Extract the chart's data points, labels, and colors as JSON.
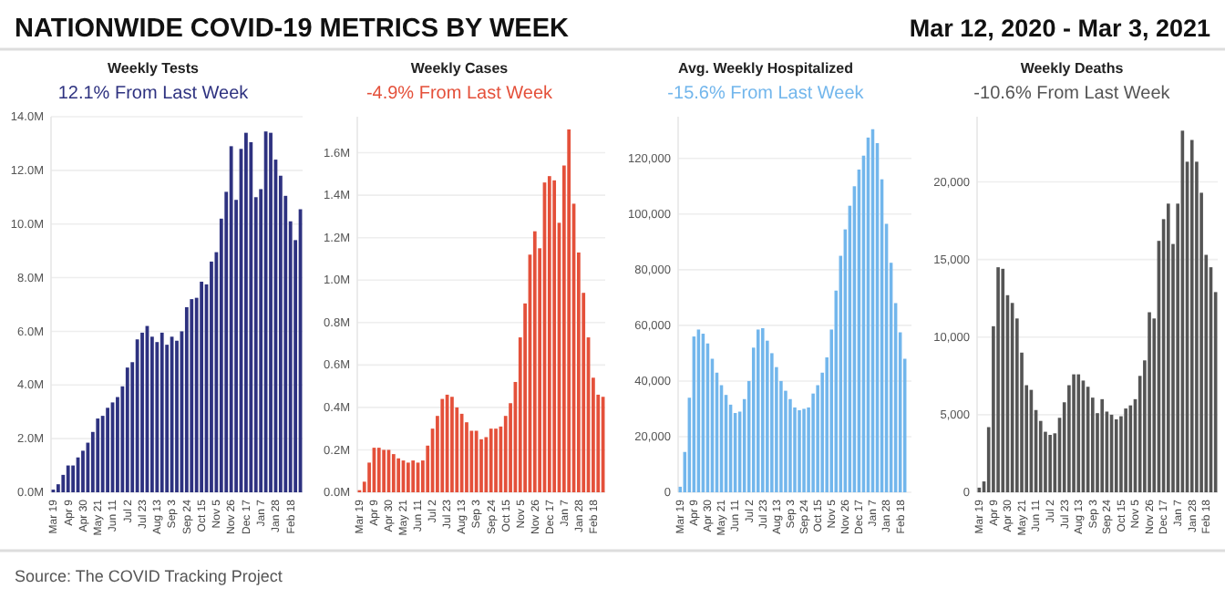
{
  "chart_data": [
    {
      "type": "bar",
      "title": "Weekly Tests",
      "subtitle": "12.1% From Last Week",
      "annotations": [
        "NATIONWIDE COVID-19 METRICS BY WEEK",
        "Mar 12, 2020 - Mar 3, 2021",
        "Source: The COVID Tracking Project"
      ],
      "categories": [
        "Mar 19",
        null,
        null,
        "Apr 9",
        null,
        null,
        "Apr 30",
        null,
        null,
        "May 21",
        null,
        null,
        "Jun 11",
        null,
        null,
        "Jul 2",
        null,
        null,
        "Jul 23",
        null,
        null,
        "Aug 13",
        null,
        null,
        "Sep 3",
        null,
        null,
        "Sep 24",
        null,
        null,
        "Oct 15",
        null,
        null,
        "Nov 5",
        null,
        null,
        "Nov 26",
        null,
        null,
        "Dec 17",
        null,
        null,
        "Jan 7",
        null,
        null,
        "Jan 28",
        null,
        null,
        "Feb 18",
        null,
        null
      ],
      "series": [
        {
          "color": "#2e3280",
          "values": [
            0.1,
            0.3,
            0.65,
            1.0,
            1.0,
            1.3,
            1.55,
            1.85,
            2.25,
            2.75,
            2.85,
            3.15,
            3.35,
            3.55,
            3.95,
            4.65,
            4.85,
            5.7,
            5.95,
            6.2,
            5.8,
            5.6,
            5.95,
            5.5,
            5.8,
            5.65,
            6.0,
            6.9,
            7.2,
            7.25,
            7.85,
            7.75,
            8.6,
            8.95,
            10.2,
            11.2,
            12.9,
            10.9,
            12.8,
            13.4,
            13.05,
            11.0,
            11.3,
            13.45,
            13.4,
            12.4,
            11.8,
            11.05,
            10.1,
            9.4,
            10.55
          ]
        }
      ],
      "ylim": [
        0,
        14
      ],
      "yticks": [
        {
          "value": 0,
          "label": "0.0M"
        },
        {
          "value": 2,
          "label": "2.0M"
        },
        {
          "value": 4,
          "label": "4.0M"
        },
        {
          "value": 6,
          "label": "6.0M"
        },
        {
          "value": 8,
          "label": "8.0M"
        },
        {
          "value": 10,
          "label": "10.0M"
        },
        {
          "value": 12,
          "label": "12.0M"
        },
        {
          "value": 14,
          "label": "14.0M"
        }
      ],
      "grid": "y"
    },
    {
      "type": "bar",
      "title": "Weekly Cases",
      "subtitle": "-4.9% From Last Week",
      "categories": [
        "Mar 19",
        null,
        null,
        "Apr 9",
        null,
        null,
        "Apr 30",
        null,
        null,
        "May 21",
        null,
        null,
        "Jun 11",
        null,
        null,
        "Jul 2",
        null,
        null,
        "Jul 23",
        null,
        null,
        "Aug 13",
        null,
        null,
        "Sep 3",
        null,
        null,
        "Sep 24",
        null,
        null,
        "Oct 15",
        null,
        null,
        "Nov 5",
        null,
        null,
        "Nov 26",
        null,
        null,
        "Dec 17",
        null,
        null,
        "Jan 7",
        null,
        null,
        "Jan 28",
        null,
        null,
        "Feb 18",
        null,
        null
      ],
      "series": [
        {
          "color": "#e4503a",
          "values": [
            0.01,
            0.05,
            0.14,
            0.21,
            0.21,
            0.2,
            0.2,
            0.18,
            0.16,
            0.15,
            0.14,
            0.15,
            0.14,
            0.15,
            0.22,
            0.3,
            0.36,
            0.44,
            0.46,
            0.45,
            0.4,
            0.37,
            0.33,
            0.29,
            0.29,
            0.25,
            0.26,
            0.3,
            0.3,
            0.31,
            0.36,
            0.42,
            0.52,
            0.73,
            0.89,
            1.12,
            1.23,
            1.15,
            1.46,
            1.49,
            1.47,
            1.27,
            1.54,
            1.71,
            1.36,
            1.13,
            0.94,
            0.73,
            0.54,
            0.46,
            0.45
          ]
        }
      ],
      "ylim": [
        0,
        1.77
      ],
      "yticks": [
        {
          "value": 0,
          "label": "0.0M"
        },
        {
          "value": 0.2,
          "label": "0.2M"
        },
        {
          "value": 0.4,
          "label": "0.4M"
        },
        {
          "value": 0.6,
          "label": "0.6M"
        },
        {
          "value": 0.8,
          "label": "0.8M"
        },
        {
          "value": 1.0,
          "label": "1.0M"
        },
        {
          "value": 1.2,
          "label": "1.2M"
        },
        {
          "value": 1.4,
          "label": "1.4M"
        },
        {
          "value": 1.6,
          "label": "1.6M"
        }
      ],
      "grid": "y"
    },
    {
      "type": "bar",
      "title": "Avg. Weekly Hospitalized",
      "subtitle": "-15.6% From Last Week",
      "categories": [
        "Mar 19",
        null,
        null,
        "Apr 9",
        null,
        null,
        "Apr 30",
        null,
        null,
        "May 21",
        null,
        null,
        "Jun 11",
        null,
        null,
        "Jul 2",
        null,
        null,
        "Jul 23",
        null,
        null,
        "Aug 13",
        null,
        null,
        "Sep 3",
        null,
        null,
        "Sep 24",
        null,
        null,
        "Oct 15",
        null,
        null,
        "Nov 5",
        null,
        null,
        "Nov 26",
        null,
        null,
        "Dec 17",
        null,
        null,
        "Jan 7",
        null,
        null,
        "Jan 28",
        null,
        null,
        "Feb 18",
        null,
        null
      ],
      "series": [
        {
          "color": "#72b6ec",
          "values": [
            2000,
            14500,
            34000,
            56000,
            58500,
            57000,
            53500,
            48000,
            43000,
            38500,
            35000,
            31500,
            28500,
            29000,
            33500,
            40000,
            52000,
            58500,
            59000,
            54500,
            50000,
            45000,
            40000,
            36500,
            33500,
            30500,
            29500,
            30000,
            30500,
            35500,
            38500,
            43000,
            48500,
            58500,
            72500,
            85000,
            94500,
            103000,
            110000,
            116000,
            121000,
            127500,
            130500,
            125500,
            112500,
            96500,
            82500,
            68000,
            57500,
            48000,
            null
          ]
        }
      ],
      "ylim": [
        0,
        135000
      ],
      "yticks": [
        {
          "value": 0,
          "label": "0"
        },
        {
          "value": 20000,
          "label": "20,000"
        },
        {
          "value": 40000,
          "label": "40,000"
        },
        {
          "value": 60000,
          "label": "60,000"
        },
        {
          "value": 80000,
          "label": "80,000"
        },
        {
          "value": 100000,
          "label": "100,000"
        },
        {
          "value": 120000,
          "label": "120,000"
        }
      ],
      "grid": "y"
    },
    {
      "type": "bar",
      "title": "Weekly Deaths",
      "subtitle": "-10.6% From Last Week",
      "categories": [
        "Mar 19",
        null,
        null,
        "Apr 9",
        null,
        null,
        "Apr 30",
        null,
        null,
        "May 21",
        null,
        null,
        "Jun 11",
        null,
        null,
        "Jul 2",
        null,
        null,
        "Jul 23",
        null,
        null,
        "Aug 13",
        null,
        null,
        "Sep 3",
        null,
        null,
        "Sep 24",
        null,
        null,
        "Oct 15",
        null,
        null,
        "Nov 5",
        null,
        null,
        "Nov 26",
        null,
        null,
        "Dec 17",
        null,
        null,
        "Jan 7",
        null,
        null,
        "Jan 28",
        null,
        null,
        "Feb 18",
        null,
        null
      ],
      "series": [
        {
          "color": "#555555",
          "values": [
            300,
            700,
            4200,
            10700,
            14500,
            14400,
            12700,
            12200,
            11200,
            9000,
            6900,
            6600,
            5300,
            4600,
            3900,
            3700,
            3800,
            4800,
            5800,
            6900,
            7600,
            7600,
            7200,
            6800,
            6100,
            5100,
            6000,
            5200,
            5000,
            4700,
            4900,
            5400,
            5600,
            6000,
            7500,
            8500,
            11600,
            11200,
            16200,
            17600,
            18600,
            16000,
            18600,
            23300,
            21300,
            22700,
            21300,
            19300,
            15300,
            14500,
            12900
          ]
        }
      ],
      "ylim": [
        0,
        24200
      ],
      "yticks": [
        {
          "value": 0,
          "label": "0"
        },
        {
          "value": 5000,
          "label": "5,000"
        },
        {
          "value": 10000,
          "label": "10,000"
        },
        {
          "value": 15000,
          "label": "15,000"
        },
        {
          "value": 20000,
          "label": "20,000"
        }
      ],
      "grid": "y"
    }
  ]
}
